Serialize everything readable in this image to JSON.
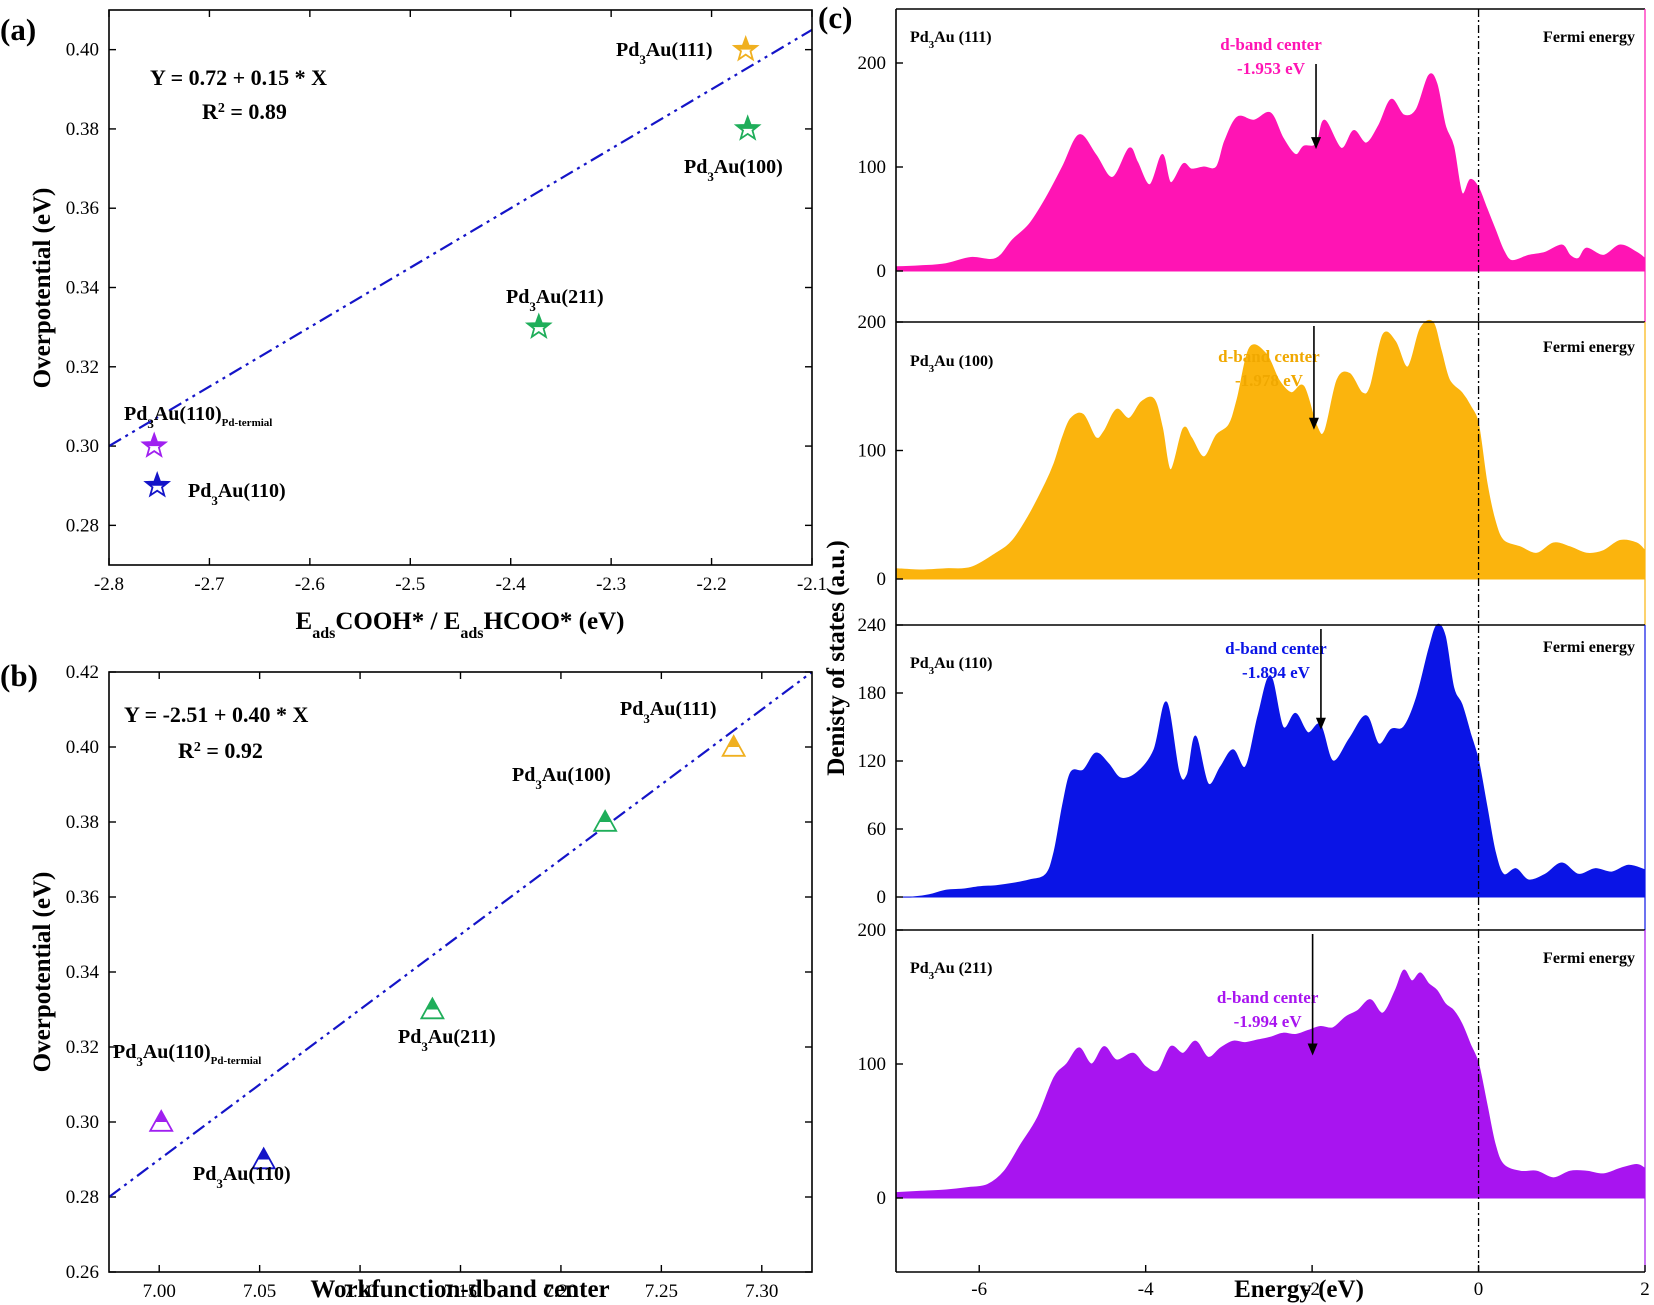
{
  "chart_data": [
    {
      "panel": "(a)",
      "type": "scatter",
      "xlabel": "E_ads COOH* / E_ads HCOO* (eV)",
      "ylabel": "Overpotential (eV)",
      "xlim": [
        -2.8,
        -2.1
      ],
      "ylim": [
        0.27,
        0.41
      ],
      "xticks": [
        "-2.8",
        "-2.7",
        "-2.6",
        "-2.5",
        "-2.4",
        "-2.3",
        "-2.2",
        "-2.1"
      ],
      "yticks": [
        "0.28",
        "0.30",
        "0.32",
        "0.34",
        "0.36",
        "0.38",
        "0.40"
      ],
      "equation": "Y = 0.72 + 0.15 * X",
      "r2_value": "= 0.89",
      "fit": {
        "intercept": 0.72,
        "slope": 0.15
      },
      "points": [
        {
          "x": -2.755,
          "y": 0.3,
          "label": "Pd3Au(110)Pd-termial",
          "color": "#a020f0"
        },
        {
          "x": -2.752,
          "y": 0.29,
          "label": "Pd3Au(110)",
          "color": "#1414c8"
        },
        {
          "x": -2.372,
          "y": 0.33,
          "label": "Pd3Au(211)",
          "color": "#1fae5a"
        },
        {
          "x": -2.164,
          "y": 0.38,
          "label": "Pd3Au(100)",
          "color": "#1fae5a"
        },
        {
          "x": -2.166,
          "y": 0.4,
          "label": "Pd3Au(111)",
          "color": "#f0b020"
        }
      ]
    },
    {
      "panel": "(b)",
      "type": "scatter",
      "xlabel": "Workfunction-dband center",
      "ylabel": "Overpotential (eV)",
      "xlim": [
        6.975,
        7.325
      ],
      "ylim": [
        0.26,
        0.42
      ],
      "xticks": [
        "7.00",
        "7.05",
        "7.10",
        "7.15",
        "7.20",
        "7.25",
        "7.30"
      ],
      "yticks": [
        "0.26",
        "0.28",
        "0.30",
        "0.32",
        "0.34",
        "0.36",
        "0.38",
        "0.40",
        "0.42"
      ],
      "equation": "Y = -2.51 + 0.40 * X",
      "r2_value": "= 0.92",
      "fit": {
        "intercept": -2.51,
        "slope": 0.4
      },
      "points": [
        {
          "x": 7.001,
          "y": 0.3,
          "label": "Pd3Au(110)Pd-termial",
          "color": "#a020f0"
        },
        {
          "x": 7.052,
          "y": 0.29,
          "label": "Pd3Au(110)",
          "color": "#1414c8"
        },
        {
          "x": 7.136,
          "y": 0.33,
          "label": "Pd3Au(211)",
          "color": "#1fae5a"
        },
        {
          "x": 7.222,
          "y": 0.38,
          "label": "Pd3Au(100)",
          "color": "#1fae5a"
        },
        {
          "x": 7.286,
          "y": 0.4,
          "label": "Pd3Au(111)",
          "color": "#f0b020"
        }
      ]
    },
    {
      "panel": "(c)",
      "type": "area",
      "xlabel": "Energy (eV)",
      "ylabel": "Denisty of states (a.u.)",
      "xlim": [
        -7,
        2
      ],
      "xticks": [
        "-6",
        "-4",
        "-2",
        "0",
        "2"
      ],
      "fermi_label": "Fermi energy",
      "dband_label": "d-band center",
      "subpanels": [
        {
          "surface": "Pd3Au (111)",
          "color": "#ff14b4",
          "ylim": [
            0,
            200
          ],
          "yticks": [
            "0",
            "100",
            "200"
          ],
          "dband_value": "-1.953 eV",
          "dband_x": -1.953,
          "x": [
            -7,
            -6.7,
            -6.4,
            -6.1,
            -5.8,
            -5.6,
            -5.4,
            -5.2,
            -5.0,
            -4.8,
            -4.6,
            -4.4,
            -4.2,
            -4.1,
            -3.95,
            -3.8,
            -3.7,
            -3.55,
            -3.45,
            -3.3,
            -3.15,
            -3.05,
            -2.9,
            -2.7,
            -2.5,
            -2.35,
            -2.2,
            -2.1,
            -1.95,
            -1.85,
            -1.65,
            -1.5,
            -1.35,
            -1.2,
            -1.05,
            -0.9,
            -0.75,
            -0.6,
            -0.5,
            -0.4,
            -0.3,
            -0.2,
            -0.1,
            0,
            0.1,
            0.2,
            0.3,
            0.4,
            0.6,
            0.8,
            1.0,
            1.1,
            1.2,
            1.3,
            1.5,
            1.7,
            1.9,
            2.0
          ],
          "y": [
            4,
            5,
            7,
            13,
            12,
            30,
            45,
            70,
            100,
            131,
            112,
            90,
            118,
            105,
            83,
            112,
            85,
            103,
            98,
            100,
            100,
            125,
            148,
            145,
            152,
            128,
            112,
            120,
            122,
            145,
            118,
            135,
            123,
            140,
            165,
            150,
            155,
            188,
            180,
            140,
            120,
            75,
            88,
            80,
            60,
            40,
            20,
            10,
            15,
            18,
            25,
            15,
            12,
            22,
            15,
            25,
            18,
            12
          ]
        },
        {
          "surface": "Pd3Au (100)",
          "color": "#fbb40d",
          "ylim": [
            0,
            200
          ],
          "yticks": [
            "0",
            "100",
            "200"
          ],
          "dband_value": "-1.978 eV",
          "dband_x": -1.978,
          "x": [
            -7,
            -6.7,
            -6.4,
            -6.1,
            -5.8,
            -5.6,
            -5.4,
            -5.2,
            -5.1,
            -5.0,
            -4.9,
            -4.75,
            -4.6,
            -4.5,
            -4.35,
            -4.2,
            -4.05,
            -3.9,
            -3.8,
            -3.7,
            -3.55,
            -3.45,
            -3.3,
            -3.15,
            -3.0,
            -2.9,
            -2.75,
            -2.55,
            -2.4,
            -2.25,
            -2.1,
            -1.95,
            -1.85,
            -1.7,
            -1.55,
            -1.4,
            -1.3,
            -1.15,
            -1.0,
            -0.85,
            -0.7,
            -0.55,
            -0.45,
            -0.35,
            -0.2,
            -0.1,
            0,
            0.1,
            0.2,
            0.3,
            0.5,
            0.7,
            0.9,
            1.1,
            1.3,
            1.5,
            1.7,
            1.9,
            2.0
          ],
          "y": [
            8,
            7,
            8,
            9,
            20,
            30,
            50,
            75,
            90,
            110,
            125,
            128,
            110,
            115,
            132,
            125,
            138,
            140,
            118,
            85,
            117,
            110,
            95,
            112,
            120,
            140,
            180,
            175,
            155,
            145,
            150,
            120,
            115,
            155,
            160,
            145,
            150,
            190,
            185,
            165,
            195,
            200,
            178,
            155,
            145,
            135,
            120,
            75,
            45,
            30,
            25,
            20,
            28,
            25,
            20,
            22,
            30,
            28,
            22
          ]
        },
        {
          "surface": "Pd3Au (110)",
          "color": "#0a14e6",
          "ylim": [
            0,
            240
          ],
          "yticks": [
            "0",
            "60",
            "120",
            "180",
            "240"
          ],
          "dband_value": "-1.894 eV",
          "dband_x": -1.894,
          "x": [
            -7,
            -6.8,
            -6.6,
            -6.4,
            -6.2,
            -6.0,
            -5.8,
            -5.6,
            -5.4,
            -5.2,
            -5.1,
            -5.0,
            -4.9,
            -4.75,
            -4.6,
            -4.45,
            -4.3,
            -4.1,
            -3.9,
            -3.75,
            -3.6,
            -3.5,
            -3.4,
            -3.25,
            -3.1,
            -2.95,
            -2.8,
            -2.65,
            -2.5,
            -2.35,
            -2.2,
            -2.05,
            -1.9,
            -1.75,
            -1.55,
            -1.35,
            -1.2,
            -1.05,
            -0.9,
            -0.75,
            -0.6,
            -0.5,
            -0.4,
            -0.3,
            -0.2,
            -0.1,
            0,
            0.1,
            0.2,
            0.3,
            0.45,
            0.6,
            0.8,
            1.0,
            1.2,
            1.4,
            1.6,
            1.8,
            2.0
          ],
          "y": [
            0,
            0,
            2,
            6,
            7,
            9,
            10,
            12,
            15,
            20,
            40,
            80,
            110,
            112,
            127,
            118,
            105,
            110,
            130,
            172,
            110,
            108,
            142,
            100,
            115,
            130,
            115,
            160,
            195,
            150,
            162,
            145,
            152,
            120,
            140,
            160,
            135,
            148,
            150,
            175,
            218,
            240,
            230,
            185,
            170,
            145,
            120,
            80,
            40,
            20,
            25,
            15,
            20,
            30,
            20,
            25,
            22,
            28,
            24
          ]
        },
        {
          "surface": "Pd3Au (211)",
          "color": "#a814f0",
          "ylim": [
            0,
            200
          ],
          "yticks": [
            "0",
            "100",
            "200"
          ],
          "dband_value": "-1.994 eV",
          "dband_x": -1.994,
          "x": [
            -7,
            -6.7,
            -6.4,
            -6.1,
            -5.9,
            -5.7,
            -5.5,
            -5.3,
            -5.1,
            -4.95,
            -4.8,
            -4.65,
            -4.5,
            -4.35,
            -4.15,
            -4.0,
            -3.85,
            -3.7,
            -3.55,
            -3.4,
            -3.25,
            -3.1,
            -2.95,
            -2.8,
            -2.65,
            -2.5,
            -2.35,
            -2.2,
            -2.05,
            -1.9,
            -1.75,
            -1.6,
            -1.45,
            -1.3,
            -1.15,
            -1.0,
            -0.9,
            -0.8,
            -0.7,
            -0.6,
            -0.5,
            -0.4,
            -0.3,
            -0.2,
            -0.1,
            0,
            0.1,
            0.2,
            0.3,
            0.5,
            0.7,
            0.9,
            1.1,
            1.3,
            1.5,
            1.7,
            1.9,
            2.0
          ],
          "y": [
            4,
            5,
            6,
            8,
            10,
            20,
            40,
            60,
            90,
            100,
            112,
            100,
            113,
            103,
            108,
            98,
            95,
            113,
            108,
            117,
            105,
            112,
            117,
            116,
            118,
            120,
            123,
            122,
            125,
            128,
            127,
            135,
            140,
            148,
            138,
            155,
            170,
            162,
            168,
            160,
            155,
            145,
            140,
            130,
            115,
            100,
            70,
            40,
            25,
            20,
            20,
            15,
            20,
            20,
            18,
            22,
            25,
            22
          ]
        }
      ]
    }
  ]
}
